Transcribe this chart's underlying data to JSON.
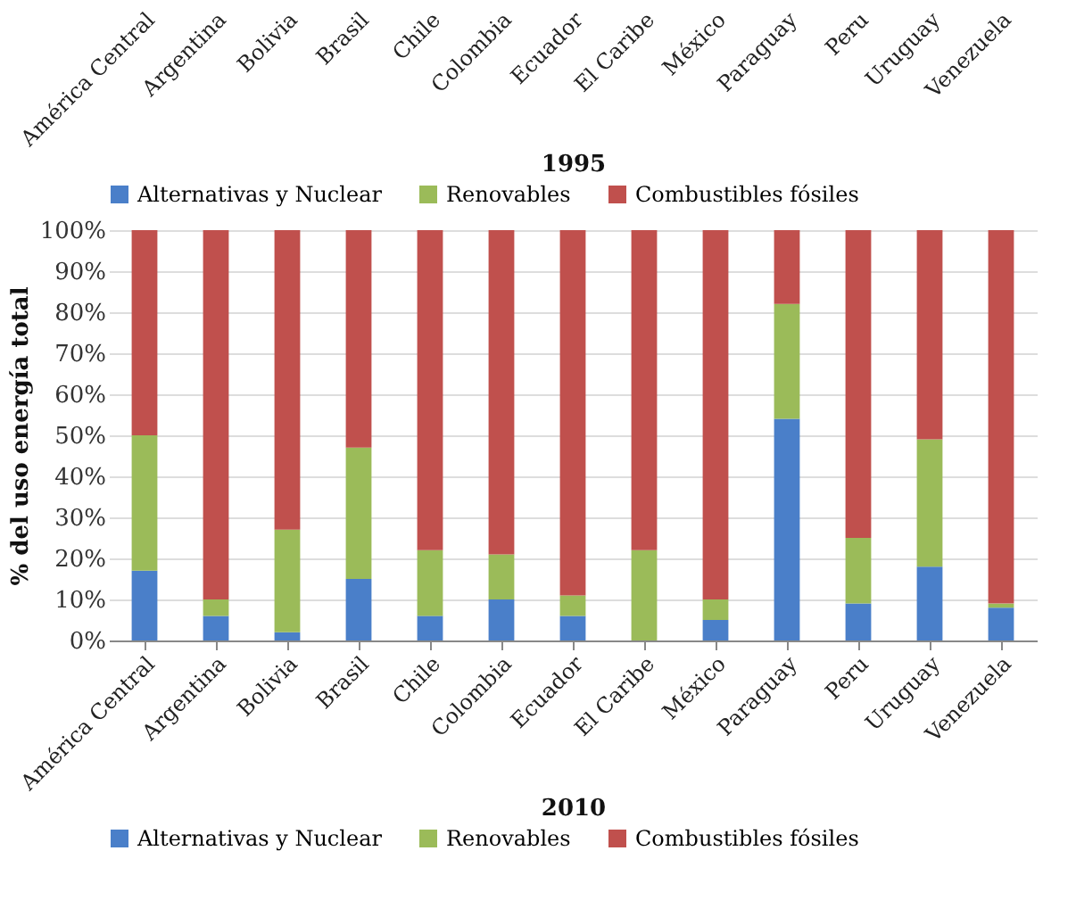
{
  "chart_data": [
    {
      "type": "other",
      "xlabel": "1995",
      "legend": "bottom",
      "categories": [
        "América Central",
        "Argentina",
        "Bolivia",
        "Brasil",
        "Chile",
        "Colombia",
        "Ecuador",
        "El Caribe",
        "México",
        "Paraguay",
        "Peru",
        "Uruguay",
        "Venezuela"
      ],
      "series": [
        {
          "name": "Alternativas y Nuclear",
          "color": "#4a7fc9",
          "values": [
            null,
            null,
            null,
            null,
            null,
            null,
            null,
            null,
            null,
            null,
            null,
            null,
            null
          ]
        },
        {
          "name": "Renovables",
          "color": "#9bbb59",
          "values": [
            null,
            null,
            null,
            null,
            null,
            null,
            null,
            null,
            null,
            null,
            null,
            null,
            null
          ]
        },
        {
          "name": "Combustibles fósiles",
          "color": "#c0504d",
          "values": [
            null,
            null,
            null,
            null,
            null,
            null,
            null,
            null,
            null,
            null,
            null,
            null,
            null
          ]
        }
      ]
    },
    {
      "type": "bar",
      "stacked": true,
      "xlabel": "2010",
      "ylabel": "% del uso energía total",
      "legend": "bottom",
      "grid": "y",
      "ylim": [
        0,
        100
      ],
      "yticks": [
        {
          "value": 0,
          "label": "0%"
        },
        {
          "value": 10,
          "label": "10%"
        },
        {
          "value": 20,
          "label": "20%"
        },
        {
          "value": 30,
          "label": "30%"
        },
        {
          "value": 40,
          "label": "40%"
        },
        {
          "value": 50,
          "label": "50%"
        },
        {
          "value": 60,
          "label": "60%"
        },
        {
          "value": 70,
          "label": "70%"
        },
        {
          "value": 80,
          "label": "80%"
        },
        {
          "value": 90,
          "label": "90%"
        },
        {
          "value": 100,
          "label": "100%"
        }
      ],
      "categories": [
        "América Central",
        "Argentina",
        "Bolivia",
        "Brasil",
        "Chile",
        "Colombia",
        "Ecuador",
        "El Caribe",
        "México",
        "Paraguay",
        "Peru",
        "Uruguay",
        "Venezuela"
      ],
      "series": [
        {
          "name": "Alternativas y Nuclear",
          "color": "#4a7fc9",
          "values": [
            17,
            6,
            2,
            15,
            6,
            10,
            6,
            0,
            5,
            54,
            9,
            18,
            8
          ]
        },
        {
          "name": "Renovables",
          "color": "#9bbb59",
          "values": [
            33,
            4,
            25,
            32,
            16,
            11,
            5,
            22,
            5,
            28,
            16,
            31,
            1
          ]
        },
        {
          "name": "Combustibles fósiles",
          "color": "#c0504d",
          "values": [
            50,
            90,
            73,
            53,
            78,
            79,
            89,
            78,
            90,
            18,
            75,
            51,
            91
          ]
        }
      ]
    }
  ]
}
